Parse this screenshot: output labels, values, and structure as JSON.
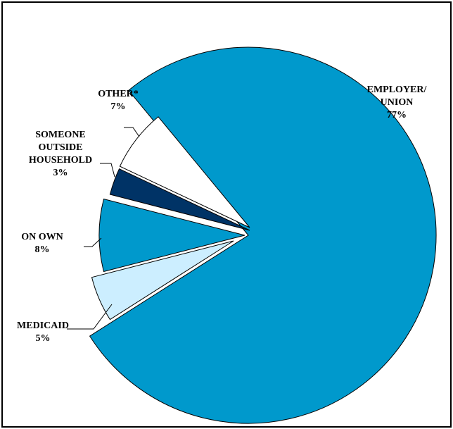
{
  "chart_data": {
    "type": "pie",
    "title": "",
    "slices": [
      {
        "label": "EMPLOYER/ UNION",
        "label_lines": [
          "EMPLOYER/",
          "UNION",
          "77%"
        ],
        "value": 77,
        "color": "#0099cc"
      },
      {
        "label": "MEDICAID",
        "label_lines": [
          "MEDICAID",
          "5%"
        ],
        "value": 5,
        "color": "#cceeff"
      },
      {
        "label": "ON OWN",
        "label_lines": [
          "ON OWN",
          "8%"
        ],
        "value": 8,
        "color": "#0099cc"
      },
      {
        "label": "SOMEONE OUTSIDE HOUSEHOLD",
        "label_lines": [
          "SOMEONE",
          "OUTSIDE",
          "HOUSEHOLD",
          "3%"
        ],
        "value": 3,
        "color": "#003366"
      },
      {
        "label": "OTHER*",
        "label_lines": [
          "OTHER*",
          "7%"
        ],
        "value": 7,
        "color": "#ffffff"
      }
    ],
    "exploded": true,
    "legend": "none",
    "stroke_color": "#000000"
  }
}
